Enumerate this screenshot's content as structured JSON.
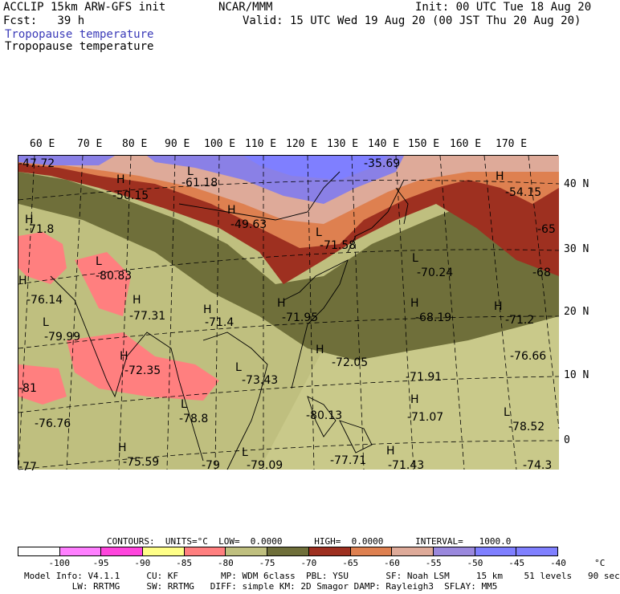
{
  "header": {
    "model": "ACCLIP 15km ARW-GFS init",
    "org": "NCAR/MMM",
    "init": "Init: 00 UTC Tue 18 Aug 20",
    "fcst": "Fcst:   39 h",
    "valid": "Valid: 15 UTC Wed 19 Aug 20 (00 JST Thu 20 Aug 20)",
    "field_shaded": "Tropopause temperature",
    "field_contour": "Tropopause temperature"
  },
  "map": {
    "lon_labels": [
      "60 E",
      "70 E",
      "80 E",
      "90 E",
      "100 E",
      "110 E",
      "120 E",
      "130 E",
      "140 E",
      "150 E",
      "160 E",
      "170 E"
    ],
    "lat_labels": [
      "40 N",
      "30 N",
      "20 N",
      "10 N",
      "0"
    ],
    "highs": [
      "H",
      "H",
      "H",
      "H",
      "H",
      "H",
      "H",
      "H",
      "H",
      "H",
      "H",
      "H",
      "H",
      "H",
      "H"
    ],
    "lows": [
      "L",
      "L",
      "L",
      "L",
      "L",
      "L",
      "L",
      "L",
      "L"
    ],
    "values": [
      "-47.72",
      "-61.18",
      "-35.69",
      "-50.15",
      "-54.15",
      "-49.63",
      "-71.8",
      "-65",
      "-71.58",
      "-70.24",
      "-68",
      "-80.83",
      "-76.14",
      "-77.31",
      "-71.4",
      "-71.95",
      "-68.19",
      "-71.2",
      "-79.99",
      "-72.35",
      "-72.05",
      "-76.66",
      "-73.43",
      "-71.91",
      "-81",
      "-76.76",
      "-78.8",
      "-80.13",
      "-71.07",
      "-78.52",
      "-75.59",
      "-79",
      "-79.09",
      "-77.71",
      "-71.43",
      "-74.3",
      "-77"
    ]
  },
  "legend": {
    "contours": "CONTOURS:  UNITS=°C  LOW=  0.0000      HIGH=  0.0000      INTERVAL=   1000.0",
    "labels": [
      "-100",
      "-95",
      "-90",
      "-85",
      "-80",
      "-75",
      "-70",
      "-65",
      "-60",
      "-55",
      "-50",
      "-45",
      "-40",
      "°C"
    ],
    "colors": [
      "#ffffff",
      "#ff7fff",
      "#ff44dd",
      "#ffff88",
      "#ff7f7f",
      "#bfbf7f",
      "#6f6f3a",
      "#9e3020",
      "#de8050",
      "#deaa99",
      "#9a88dd",
      "#7f7fff",
      "#8080ff"
    ]
  },
  "footer": {
    "line1": "Model Info: V4.1.1     CU: KF        MP: WDM 6class  PBL: YSU       SF: Noah LSM     15 km    51 levels   90 sec",
    "line2": "         LW: RRTMG     SW: RRTMG   DIFF: simple KM: 2D Smagor DAMP: Rayleigh3  SFLAY: MM5"
  }
}
